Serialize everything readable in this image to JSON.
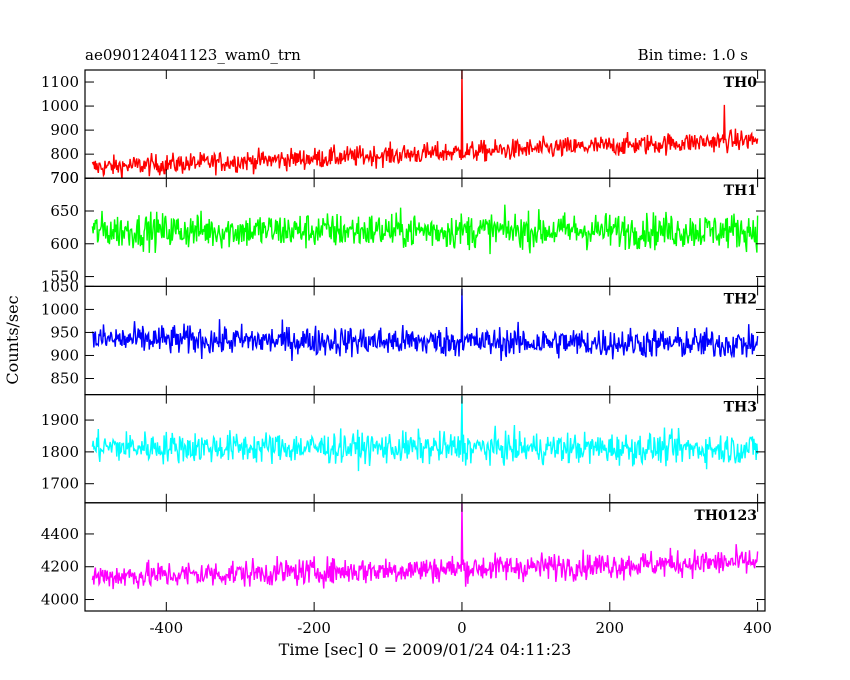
{
  "chart_data": {
    "type": "line",
    "title_left": "ae090124041123_wam0_trn",
    "title_right": "Bin time: 1.0 s",
    "xlabel": "Time [sec] 0 = 2009/01/24 04:11:23",
    "ylabel": "Counts/sec",
    "xlim": [
      -510,
      410
    ],
    "xticks": [
      -400,
      -200,
      0,
      200,
      400
    ],
    "x_range": [
      -500,
      400
    ],
    "bin_time_s": 1.0,
    "grid": false,
    "panels": [
      {
        "name": "TH0",
        "color": "#ff0000",
        "ylim": [
          700,
          1150
        ],
        "yticks": [
          700,
          800,
          900,
          1000,
          1100
        ],
        "trend": [
          {
            "x": -500,
            "mean": 745
          },
          {
            "x": 400,
            "mean": 860
          }
        ],
        "noise": 40,
        "spikes": [
          {
            "x": 0,
            "y": 1150
          },
          {
            "x": 355,
            "y": 1005
          }
        ]
      },
      {
        "name": "TH1",
        "color": "#00ff00",
        "ylim": [
          535,
          700
        ],
        "yticks": [
          550,
          600,
          650,
          700
        ],
        "trend": [
          {
            "x": -500,
            "mean": 620
          },
          {
            "x": 400,
            "mean": 620
          }
        ],
        "noise": 25,
        "spikes": []
      },
      {
        "name": "TH2",
        "color": "#0000ff",
        "ylim": [
          815,
          1050
        ],
        "yticks": [
          850,
          900,
          950,
          1000,
          1050
        ],
        "trend": [
          {
            "x": -500,
            "mean": 935
          },
          {
            "x": 400,
            "mean": 925
          }
        ],
        "noise": 30,
        "spikes": [
          {
            "x": 0,
            "y": 1045
          }
        ]
      },
      {
        "name": "TH3",
        "color": "#00ffff",
        "ylim": [
          1640,
          1980
        ],
        "yticks": [
          1700,
          1800,
          1900
        ],
        "trend": [
          {
            "x": -500,
            "mean": 1815
          },
          {
            "x": 400,
            "mean": 1810
          }
        ],
        "noise": 45,
        "spikes": [
          {
            "x": 0,
            "y": 1975
          }
        ]
      },
      {
        "name": "TH0123",
        "color": "#ff00ff",
        "ylim": [
          3930,
          4590
        ],
        "yticks": [
          4000,
          4200,
          4400
        ],
        "trend": [
          {
            "x": -500,
            "mean": 4140
          },
          {
            "x": 400,
            "mean": 4230
          }
        ],
        "noise": 75,
        "spikes": [
          {
            "x": 0,
            "y": 4590
          }
        ]
      }
    ]
  }
}
